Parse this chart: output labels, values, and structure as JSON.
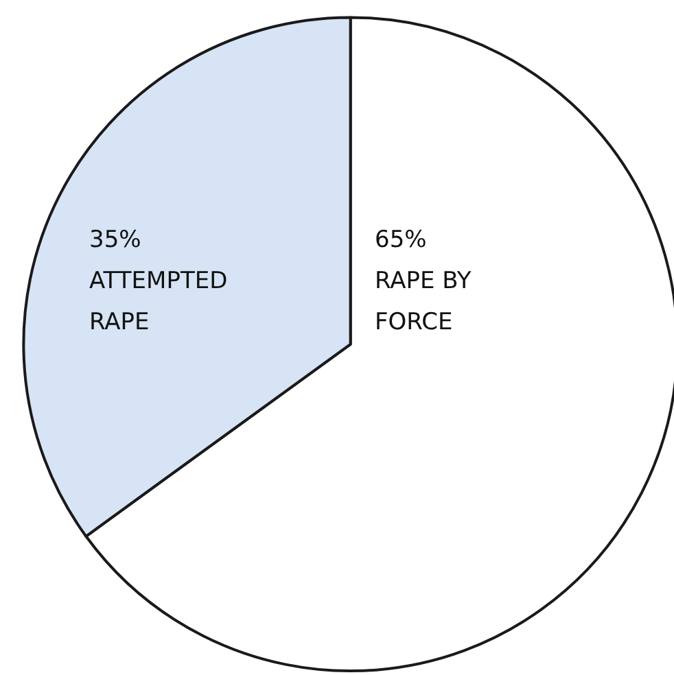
{
  "chart_data": {
    "type": "pie",
    "categories": [
      "RAPE BY FORCE",
      "ATTEMPTED RAPE"
    ],
    "values": [
      65,
      35
    ],
    "colors": [
      "#ffffff",
      "#d6e4f5"
    ],
    "value_labels": [
      "65%",
      "35%"
    ]
  }
}
